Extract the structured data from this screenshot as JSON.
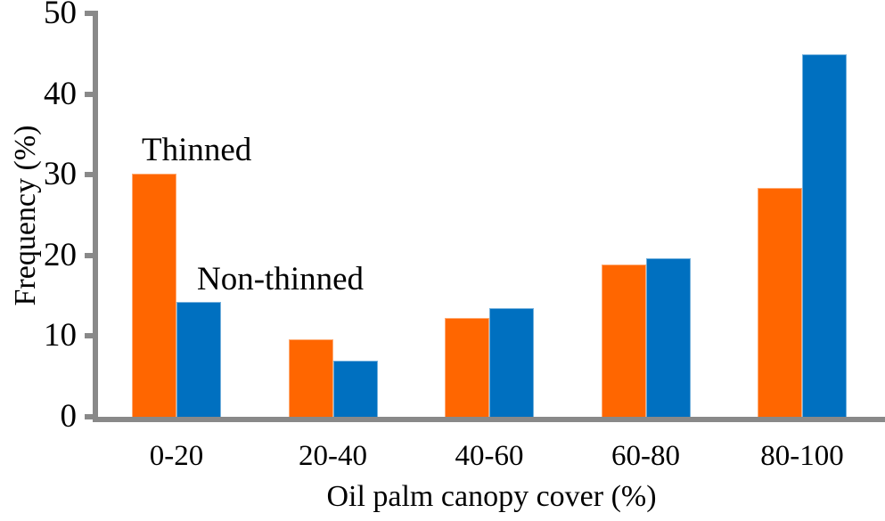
{
  "chart_data": {
    "type": "bar",
    "title": "",
    "xlabel": "Oil palm canopy cover (%)",
    "ylabel": "Frequency (%)",
    "categories": [
      "0-20",
      "20-40",
      "40-60",
      "60-80",
      "80-100"
    ],
    "series": [
      {
        "name": "Thinned",
        "color": "#FF6600",
        "values": [
          30.1,
          9.6,
          12.2,
          18.9,
          28.4
        ]
      },
      {
        "name": "Non-thinned",
        "color": "#0070C0",
        "values": [
          14.2,
          7.0,
          13.5,
          19.7,
          44.9
        ]
      }
    ],
    "y_ticks": [
      0,
      10,
      20,
      30,
      40,
      50
    ],
    "ylim": [
      0,
      50
    ],
    "grid": false,
    "legend_position": "in-plot text annotations",
    "axis_color": "#898989",
    "annotations": [
      {
        "text": "Thinned"
      },
      {
        "text": "Non-thinned"
      }
    ]
  }
}
